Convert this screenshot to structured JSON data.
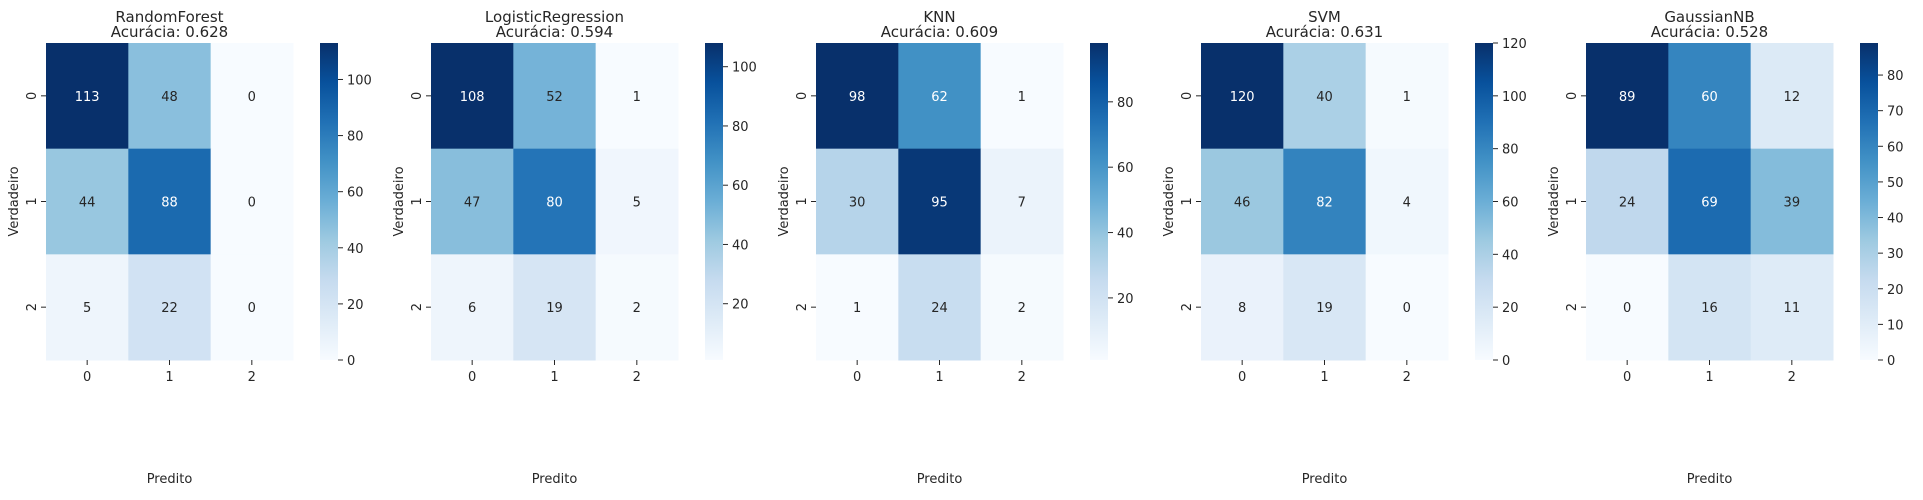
{
  "chart_data": [
    {
      "type": "heatmap",
      "title": "RandomForest",
      "subtitle": "Acurácia: 0.628",
      "xlabel": "Predito",
      "ylabel": "Verdadeiro",
      "x_categories": [
        "0",
        "1",
        "2"
      ],
      "y_categories": [
        "0",
        "1",
        "2"
      ],
      "values": [
        [
          113,
          48,
          0
        ],
        [
          44,
          88,
          0
        ],
        [
          5,
          22,
          0
        ]
      ],
      "colormap": "Blues",
      "vmin": 0,
      "vmax": 113,
      "colorbar_ticks": [
        "0",
        "20",
        "40",
        "60",
        "80",
        "100"
      ]
    },
    {
      "type": "heatmap",
      "title": "LogisticRegression",
      "subtitle": "Acurácia: 0.594",
      "xlabel": "Predito",
      "ylabel": "Verdadeiro",
      "x_categories": [
        "0",
        "1",
        "2"
      ],
      "y_categories": [
        "0",
        "1",
        "2"
      ],
      "values": [
        [
          108,
          52,
          1
        ],
        [
          47,
          80,
          5
        ],
        [
          6,
          19,
          2
        ]
      ],
      "colormap": "Blues",
      "vmin": 1,
      "vmax": 108,
      "colorbar_ticks": [
        "20",
        "40",
        "60",
        "80",
        "100"
      ]
    },
    {
      "type": "heatmap",
      "title": "KNN",
      "subtitle": "Acurácia: 0.609",
      "xlabel": "Predito",
      "ylabel": "Verdadeiro",
      "x_categories": [
        "0",
        "1",
        "2"
      ],
      "y_categories": [
        "0",
        "1",
        "2"
      ],
      "values": [
        [
          98,
          62,
          1
        ],
        [
          30,
          95,
          7
        ],
        [
          1,
          24,
          2
        ]
      ],
      "colormap": "Blues",
      "vmin": 1,
      "vmax": 98,
      "colorbar_ticks": [
        "20",
        "40",
        "60",
        "80"
      ]
    },
    {
      "type": "heatmap",
      "title": "SVM",
      "subtitle": "Acurácia: 0.631",
      "xlabel": "Predito",
      "ylabel": "Verdadeiro",
      "x_categories": [
        "0",
        "1",
        "2"
      ],
      "y_categories": [
        "0",
        "1",
        "2"
      ],
      "values": [
        [
          120,
          40,
          1
        ],
        [
          46,
          82,
          4
        ],
        [
          8,
          19,
          0
        ]
      ],
      "colormap": "Blues",
      "vmin": 0,
      "vmax": 120,
      "colorbar_ticks": [
        "0",
        "20",
        "40",
        "60",
        "80",
        "100",
        "120"
      ]
    },
    {
      "type": "heatmap",
      "title": "GaussianNB",
      "subtitle": "Acurácia: 0.528",
      "xlabel": "Predito",
      "ylabel": "Verdadeiro",
      "x_categories": [
        "0",
        "1",
        "2"
      ],
      "y_categories": [
        "0",
        "1",
        "2"
      ],
      "values": [
        [
          89,
          60,
          12
        ],
        [
          24,
          69,
          39
        ],
        [
          0,
          16,
          11
        ]
      ],
      "colormap": "Blues",
      "vmin": 0,
      "vmax": 89,
      "colorbar_ticks": [
        "0",
        "10",
        "20",
        "30",
        "40",
        "50",
        "60",
        "70",
        "80"
      ]
    }
  ]
}
